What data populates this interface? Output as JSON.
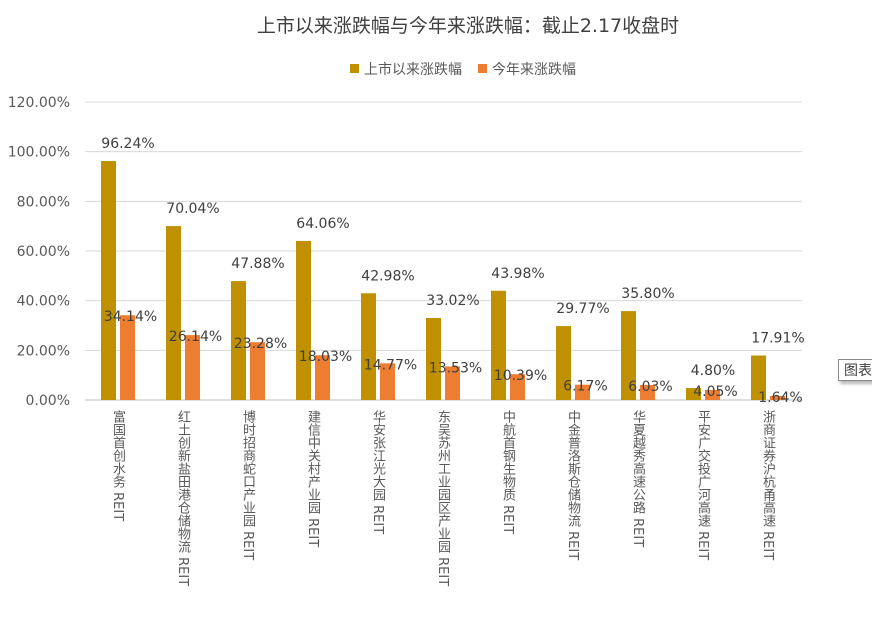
{
  "chart_data": {
    "type": "bar",
    "title": "上市以来涨跌幅与今年来涨跌幅：截止2.17收盘时",
    "legend_position": "top",
    "categories": [
      "富国首创水务 REIT",
      "红土创新盐田港仓储物流 REIT",
      "博时招商蛇口产业园 REIT",
      "建信中关村产业园 REIT",
      "华安张江光大园 REIT",
      "东吴苏州工业园区产业园 REIT",
      "中航首钢生物质 REIT",
      "中金普洛斯仓储物流 REIT",
      "华夏越秀高速公路 REIT",
      "平安广交投广河高速 REIT",
      "浙商证券沪杭甬高速 REIT"
    ],
    "series": [
      {
        "name": "上市以来涨跌幅",
        "color": "#BF9000",
        "values": [
          96.24,
          70.04,
          47.88,
          64.06,
          42.98,
          33.02,
          43.98,
          29.77,
          35.8,
          4.8,
          17.91
        ],
        "labels": [
          "96.24%",
          "70.04%",
          "47.88%",
          "64.06%",
          "42.98%",
          "33.02%",
          "43.98%",
          "29.77%",
          "35.80%",
          "4.80%",
          "17.91%"
        ]
      },
      {
        "name": "今年来涨跌幅",
        "color": "#ED7D31",
        "values": [
          34.14,
          26.14,
          23.28,
          18.03,
          14.77,
          13.53,
          10.39,
          6.17,
          6.03,
          4.05,
          1.64
        ],
        "labels": [
          "34.14%",
          "26.14%",
          "23.28%",
          "18.03%",
          "14.77%",
          "13.53%",
          "10.39%",
          "6.17%",
          "6.03%",
          "4.05%",
          "1.64%"
        ]
      }
    ],
    "ylim": [
      0,
      120
    ],
    "yticks": [
      "0.00%",
      "20.00%",
      "40.00%",
      "60.00%",
      "80.00%",
      "100.00%",
      "120.00%"
    ],
    "grid": true,
    "xlabel": "",
    "ylabel": ""
  },
  "overlay": {
    "tooltip_label": "图表"
  }
}
